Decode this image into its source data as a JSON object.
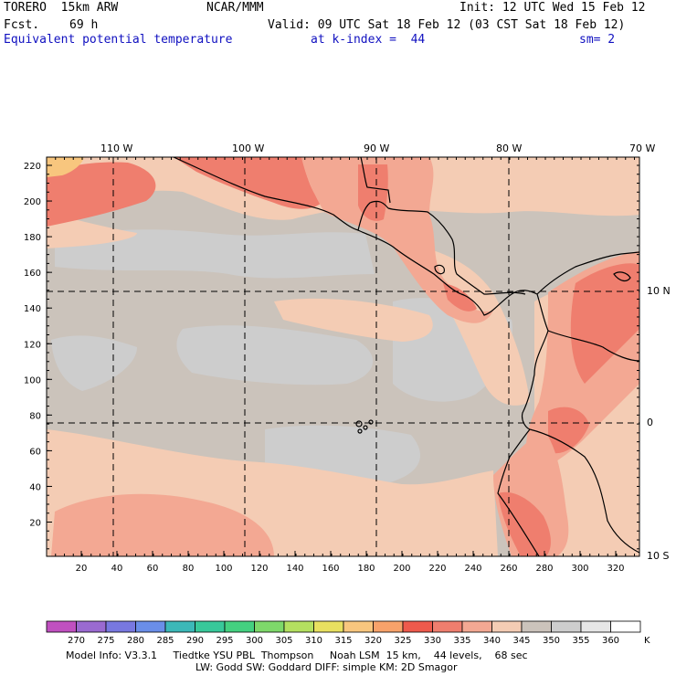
{
  "header": {
    "model": "TORERO  15km ARW",
    "center": "NCAR/MMM",
    "init": "Init: 12 UTC Wed 15 Feb 12",
    "fcst_label": "Fcst.",
    "fcst_hours": "69 h",
    "valid": "Valid: 09 UTC Sat 18 Feb 12 (03 CST Sat 18 Feb 12)",
    "field": "Equivalent potential temperature",
    "level": "at k-index =  44",
    "smooth": "sm= 2"
  },
  "map": {
    "lon_labels": [
      "110 W",
      "100 W",
      "90 W",
      "80 W",
      "70 W"
    ],
    "lat_labels": [
      "10 N",
      "0",
      "10 S"
    ],
    "y_ticks": [
      "220",
      "200",
      "180",
      "160",
      "140",
      "120",
      "100",
      "80",
      "60",
      "40",
      "20"
    ],
    "x_ticks": [
      "20",
      "40",
      "60",
      "80",
      "100",
      "120",
      "140",
      "160",
      "180",
      "200",
      "220",
      "240",
      "260",
      "280",
      "300",
      "320"
    ],
    "colors": {
      "fill_345": "#cbc3bb",
      "fill_350": "#cdcdcd",
      "fill_340": "#f4ccb4",
      "fill_335": "#f3a893",
      "fill_330": "#ef7e6e",
      "fill_325": "#ee5a4c",
      "fill_320": "#f7a26a",
      "fill_315": "#f8c67e",
      "coast": "#000000"
    }
  },
  "colorbar": {
    "labels": [
      "270",
      "275",
      "280",
      "285",
      "290",
      "295",
      "300",
      "305",
      "310",
      "315",
      "320",
      "325",
      "330",
      "335",
      "340",
      "345",
      "350",
      "355",
      "360"
    ],
    "unit": "K",
    "colors": [
      "#c050c0",
      "#9a6ad0",
      "#7878e0",
      "#6a8ee8",
      "#3cb8b8",
      "#38c89a",
      "#44d080",
      "#7ed86a",
      "#b4e060",
      "#e8e060",
      "#f8c67e",
      "#f7a26a",
      "#ee5a4c",
      "#ef7e6e",
      "#f3a893",
      "#f4ccb4",
      "#cbc3bb",
      "#cdcdcd",
      "#e6e6e6",
      "#ffffff"
    ]
  },
  "footer": {
    "line1": "Model Info: V3.3.1     Tiedtke YSU PBL  Thompson     Noah LSM  15 km,    44 levels,    68 sec",
    "line2": "LW: Godd SW: Goddard DIFF: simple KM: 2D Smagor"
  }
}
